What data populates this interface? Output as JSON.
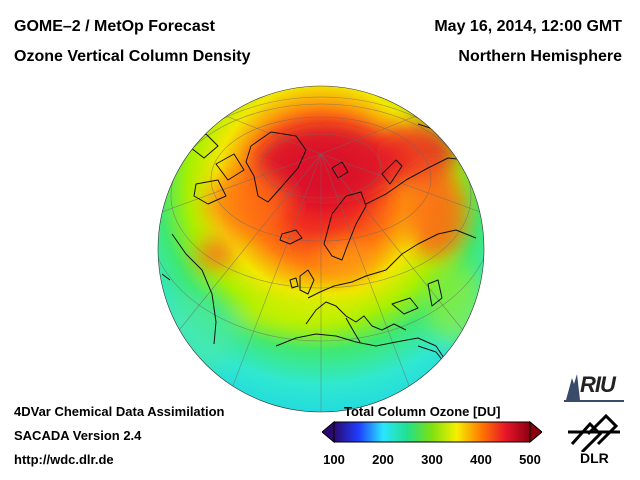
{
  "header": {
    "title": "GOME–2 / MetOp Forecast",
    "product": "Ozone Vertical Column Density",
    "date": "May 16, 2014, 12:00 GMT",
    "region": "Northern Hemisphere"
  },
  "footer": {
    "assimilation": "4DVar Chemical Data Assimilation",
    "version": "SACADA Version 2.4",
    "url": "http://wdc.dlr.de"
  },
  "colorbar": {
    "title": "Total Column Ozone [DU]",
    "min": 100,
    "max": 500,
    "ticks": [
      "100",
      "200",
      "300",
      "400",
      "500"
    ],
    "colors": [
      "#2a0a6e",
      "#1f3cff",
      "#28e6ff",
      "#22e08a",
      "#7fe010",
      "#f5f000",
      "#ff7a00",
      "#e8162a",
      "#8a0010"
    ]
  },
  "logos": {
    "riu": "RIU",
    "dlr": "DLR"
  },
  "colors": {
    "ocean_low": "#40f0d0",
    "mid": "#c8f000",
    "high": "#ff6a10",
    "peak": "#e51a28"
  }
}
